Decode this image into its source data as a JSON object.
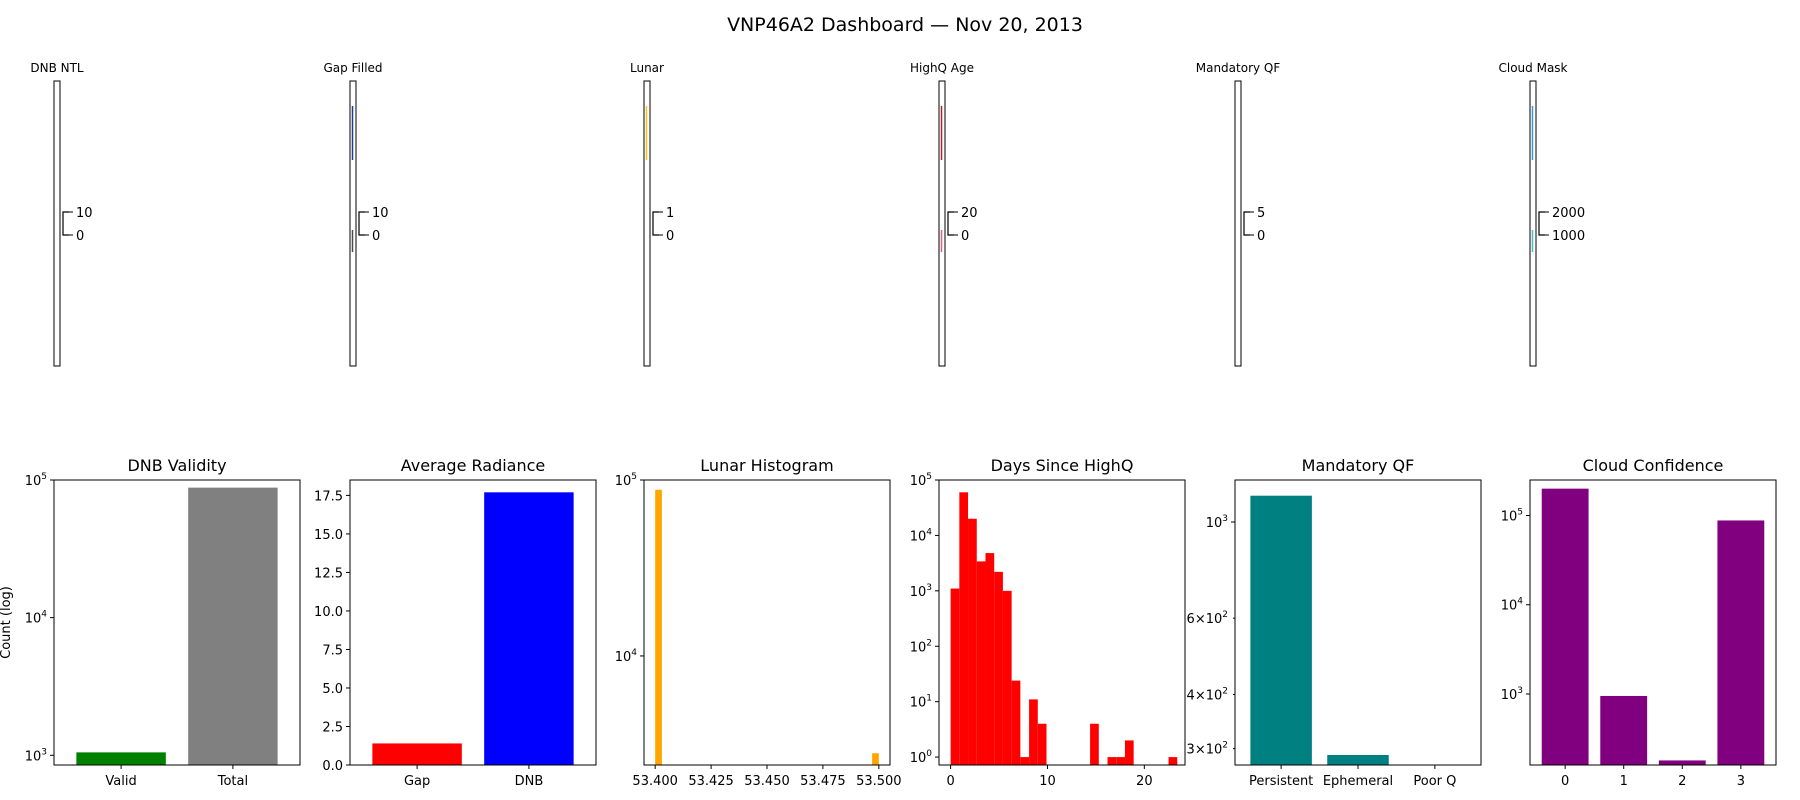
{
  "suptitle": "VNP46A2 Dashboard — Nov 20, 2013",
  "colors": {
    "green": "#008000",
    "gray": "#808080",
    "red": "#ff0000",
    "blue": "#0000ff",
    "orange": "#ffa500",
    "teal": "#008080",
    "purple": "#800080"
  },
  "strips": [
    {
      "title": "DNB NTL",
      "ticks": [
        "10",
        "0"
      ],
      "streaks": []
    },
    {
      "title": "Gap Filled",
      "ticks": [
        "10",
        "0"
      ],
      "streaks": [
        {
          "color": "#1f3a93"
        },
        {
          "color": "#4a4a4a"
        }
      ]
    },
    {
      "title": "Lunar",
      "ticks": [
        "1",
        "0"
      ],
      "streaks": [
        {
          "color": "#f5c518"
        }
      ]
    },
    {
      "title": "HighQ Age",
      "ticks": [
        "20",
        "0"
      ],
      "streaks": [
        {
          "color": "#b22222"
        },
        {
          "color": "#e06080"
        }
      ]
    },
    {
      "title": "Mandatory QF",
      "ticks": [
        "5",
        "0"
      ],
      "streaks": []
    },
    {
      "title": "Cloud Mask",
      "ticks": [
        "2000",
        "1000"
      ],
      "streaks": [
        {
          "color": "#3a9ad9"
        },
        {
          "color": "#40c0c0"
        }
      ]
    }
  ],
  "chart_data": [
    {
      "type": "bar",
      "title": "DNB Validity",
      "ylabel": "Count (log)",
      "yscale": "log",
      "ylim": [
        850,
        100000
      ],
      "categories": [
        "Valid",
        "Total"
      ],
      "values": [
        1050,
        88000
      ],
      "colors": [
        "#008000",
        "#808080"
      ],
      "yticks": [
        {
          "v": 1000,
          "b": "10",
          "e": "3"
        },
        {
          "v": 10000,
          "b": "10",
          "e": "4"
        },
        {
          "v": 100000,
          "b": "10",
          "e": "5"
        }
      ]
    },
    {
      "type": "bar",
      "title": "Average Radiance",
      "yscale": "linear",
      "ylim": [
        0,
        18.5
      ],
      "categories": [
        "Gap",
        "DNB"
      ],
      "values": [
        1.4,
        17.7
      ],
      "colors": [
        "#ff0000",
        "#0000ff"
      ],
      "yticks": [
        {
          "v": 0,
          "t": "0.0"
        },
        {
          "v": 2.5,
          "t": "2.5"
        },
        {
          "v": 5,
          "t": "5.0"
        },
        {
          "v": 7.5,
          "t": "7.5"
        },
        {
          "v": 10,
          "t": "10.0"
        },
        {
          "v": 12.5,
          "t": "12.5"
        },
        {
          "v": 15,
          "t": "15.0"
        },
        {
          "v": 17.5,
          "t": "17.5"
        }
      ]
    },
    {
      "type": "histogram",
      "title": "Lunar Histogram",
      "yscale": "log",
      "ylim": [
        2400,
        100000
      ],
      "xlim": [
        53.395,
        53.505
      ],
      "color": "#ffa500",
      "bins": [
        {
          "x0": 53.4,
          "x1": 53.403,
          "count": 88000
        },
        {
          "x0": 53.497,
          "x1": 53.5,
          "count": 2800
        }
      ],
      "xticks": [
        {
          "v": 53.4,
          "t": "53.400"
        },
        {
          "v": 53.425,
          "t": "53.425"
        },
        {
          "v": 53.45,
          "t": "53.450"
        },
        {
          "v": 53.475,
          "t": "53.475"
        },
        {
          "v": 53.5,
          "t": "53.500"
        }
      ],
      "yticks": [
        {
          "v": 10000,
          "b": "10",
          "e": "4"
        },
        {
          "v": 100000,
          "b": "10",
          "e": "5"
        }
      ]
    },
    {
      "type": "histogram",
      "title": "Days Since HighQ",
      "yscale": "log",
      "ylim": [
        0.72,
        100000
      ],
      "xlim": [
        -1.2,
        24.2
      ],
      "color": "#ff0000",
      "binWidth": 0.9,
      "bins": [
        {
          "x": 0,
          "count": 1100
        },
        {
          "x": 0.9,
          "count": 60000
        },
        {
          "x": 1.8,
          "count": 20000
        },
        {
          "x": 2.7,
          "count": 3400
        },
        {
          "x": 3.6,
          "count": 4800
        },
        {
          "x": 4.5,
          "count": 2200
        },
        {
          "x": 5.4,
          "count": 1000
        },
        {
          "x": 6.3,
          "count": 24
        },
        {
          "x": 7.2,
          "count": 1
        },
        {
          "x": 8.1,
          "count": 11
        },
        {
          "x": 9.0,
          "count": 4
        },
        {
          "x": 14.4,
          "count": 4
        },
        {
          "x": 16.2,
          "count": 1
        },
        {
          "x": 17.1,
          "count": 1
        },
        {
          "x": 18.0,
          "count": 2
        },
        {
          "x": 22.5,
          "count": 1
        }
      ],
      "xticks": [
        {
          "v": 0,
          "t": "0"
        },
        {
          "v": 10,
          "t": "10"
        },
        {
          "v": 20,
          "t": "20"
        }
      ],
      "yticks": [
        {
          "v": 1,
          "b": "10",
          "e": "0"
        },
        {
          "v": 10,
          "b": "10",
          "e": "1"
        },
        {
          "v": 100,
          "b": "10",
          "e": "2"
        },
        {
          "v": 1000,
          "b": "10",
          "e": "3"
        },
        {
          "v": 10000,
          "b": "10",
          "e": "4"
        },
        {
          "v": 100000,
          "b": "10",
          "e": "5"
        }
      ]
    },
    {
      "type": "bar",
      "title": "Mandatory QF",
      "yscale": "log",
      "ylim": [
        275,
        1250
      ],
      "categories": [
        "Persistent",
        "Ephemeral",
        "Poor Q"
      ],
      "values": [
        1150,
        290,
        0
      ],
      "colors": [
        "#008080",
        "#008080",
        "#008080"
      ],
      "yticks": [
        {
          "v": 1000,
          "b": "10",
          "e": "3"
        }
      ],
      "minorLabels": [
        {
          "v": 600,
          "t": "6×10",
          "e": "2"
        },
        {
          "v": 400,
          "t": "4×10",
          "e": "2"
        },
        {
          "v": 300,
          "t": "3×10",
          "e": "2"
        }
      ]
    },
    {
      "type": "bar",
      "title": "Cloud Confidence",
      "yscale": "log",
      "ylim": [
        160,
        250000
      ],
      "categories": [
        "0",
        "1",
        "2",
        "3"
      ],
      "values": [
        200000,
        950,
        180,
        88000
      ],
      "colors": [
        "#800080",
        "#800080",
        "#800080",
        "#800080"
      ],
      "yticks": [
        {
          "v": 1000,
          "b": "10",
          "e": "3"
        },
        {
          "v": 10000,
          "b": "10",
          "e": "4"
        },
        {
          "v": 100000,
          "b": "10",
          "e": "5"
        }
      ]
    }
  ]
}
